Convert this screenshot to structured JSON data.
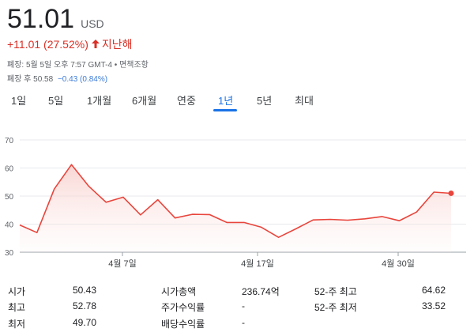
{
  "quote": {
    "price": "51.01",
    "currency": "USD",
    "change": "+11.01 (27.52%)",
    "period": "지난해",
    "meta": "폐장: 5월 5일 오후 7:57 GMT-4 • 면책조항",
    "after_label": "폐장 후 50.58",
    "after_change": "−0.43 (0.84%)"
  },
  "tabs": [
    "1일",
    "5일",
    "1개월",
    "6개월",
    "연중",
    "1년",
    "5년",
    "최대"
  ],
  "active_tab": "1년",
  "colors": {
    "line": "#e8453c",
    "fill": "#fde8e7",
    "active": "#1a73e8",
    "down": "#d93025"
  },
  "icons": {
    "change_arrow": "arrow-up-icon",
    "end_marker": "dot-icon"
  },
  "chart_data": {
    "type": "area",
    "title": "",
    "xlabel": "",
    "ylabel": "",
    "ylim": [
      30,
      70
    ],
    "yticks": [
      "70",
      "60",
      "50",
      "40",
      "30"
    ],
    "xtick_labels": [
      "4월 7일",
      "4월 17일",
      "4월 30일"
    ],
    "values": [
      39.7,
      37.0,
      52.5,
      61.2,
      53.5,
      47.8,
      49.6,
      43.3,
      48.7,
      42.2,
      43.5,
      43.4,
      40.6,
      40.6,
      38.9,
      35.3,
      38.3,
      41.5,
      41.7,
      41.4,
      41.9,
      42.7,
      41.2,
      44.3,
      51.4,
      51.0
    ],
    "grid": true
  },
  "stats": [
    {
      "label": "시가",
      "value": "50.43"
    },
    {
      "label": "최고",
      "value": "52.78"
    },
    {
      "label": "최저",
      "value": "49.70"
    },
    {
      "label": "시가총액",
      "value": "236.74억"
    },
    {
      "label": "주가수익률",
      "value": "-"
    },
    {
      "label": "배당수익률",
      "value": "-"
    },
    {
      "label": "52-주 최고",
      "value": "64.62"
    },
    {
      "label": "52-주 최저",
      "value": "33.52"
    }
  ]
}
